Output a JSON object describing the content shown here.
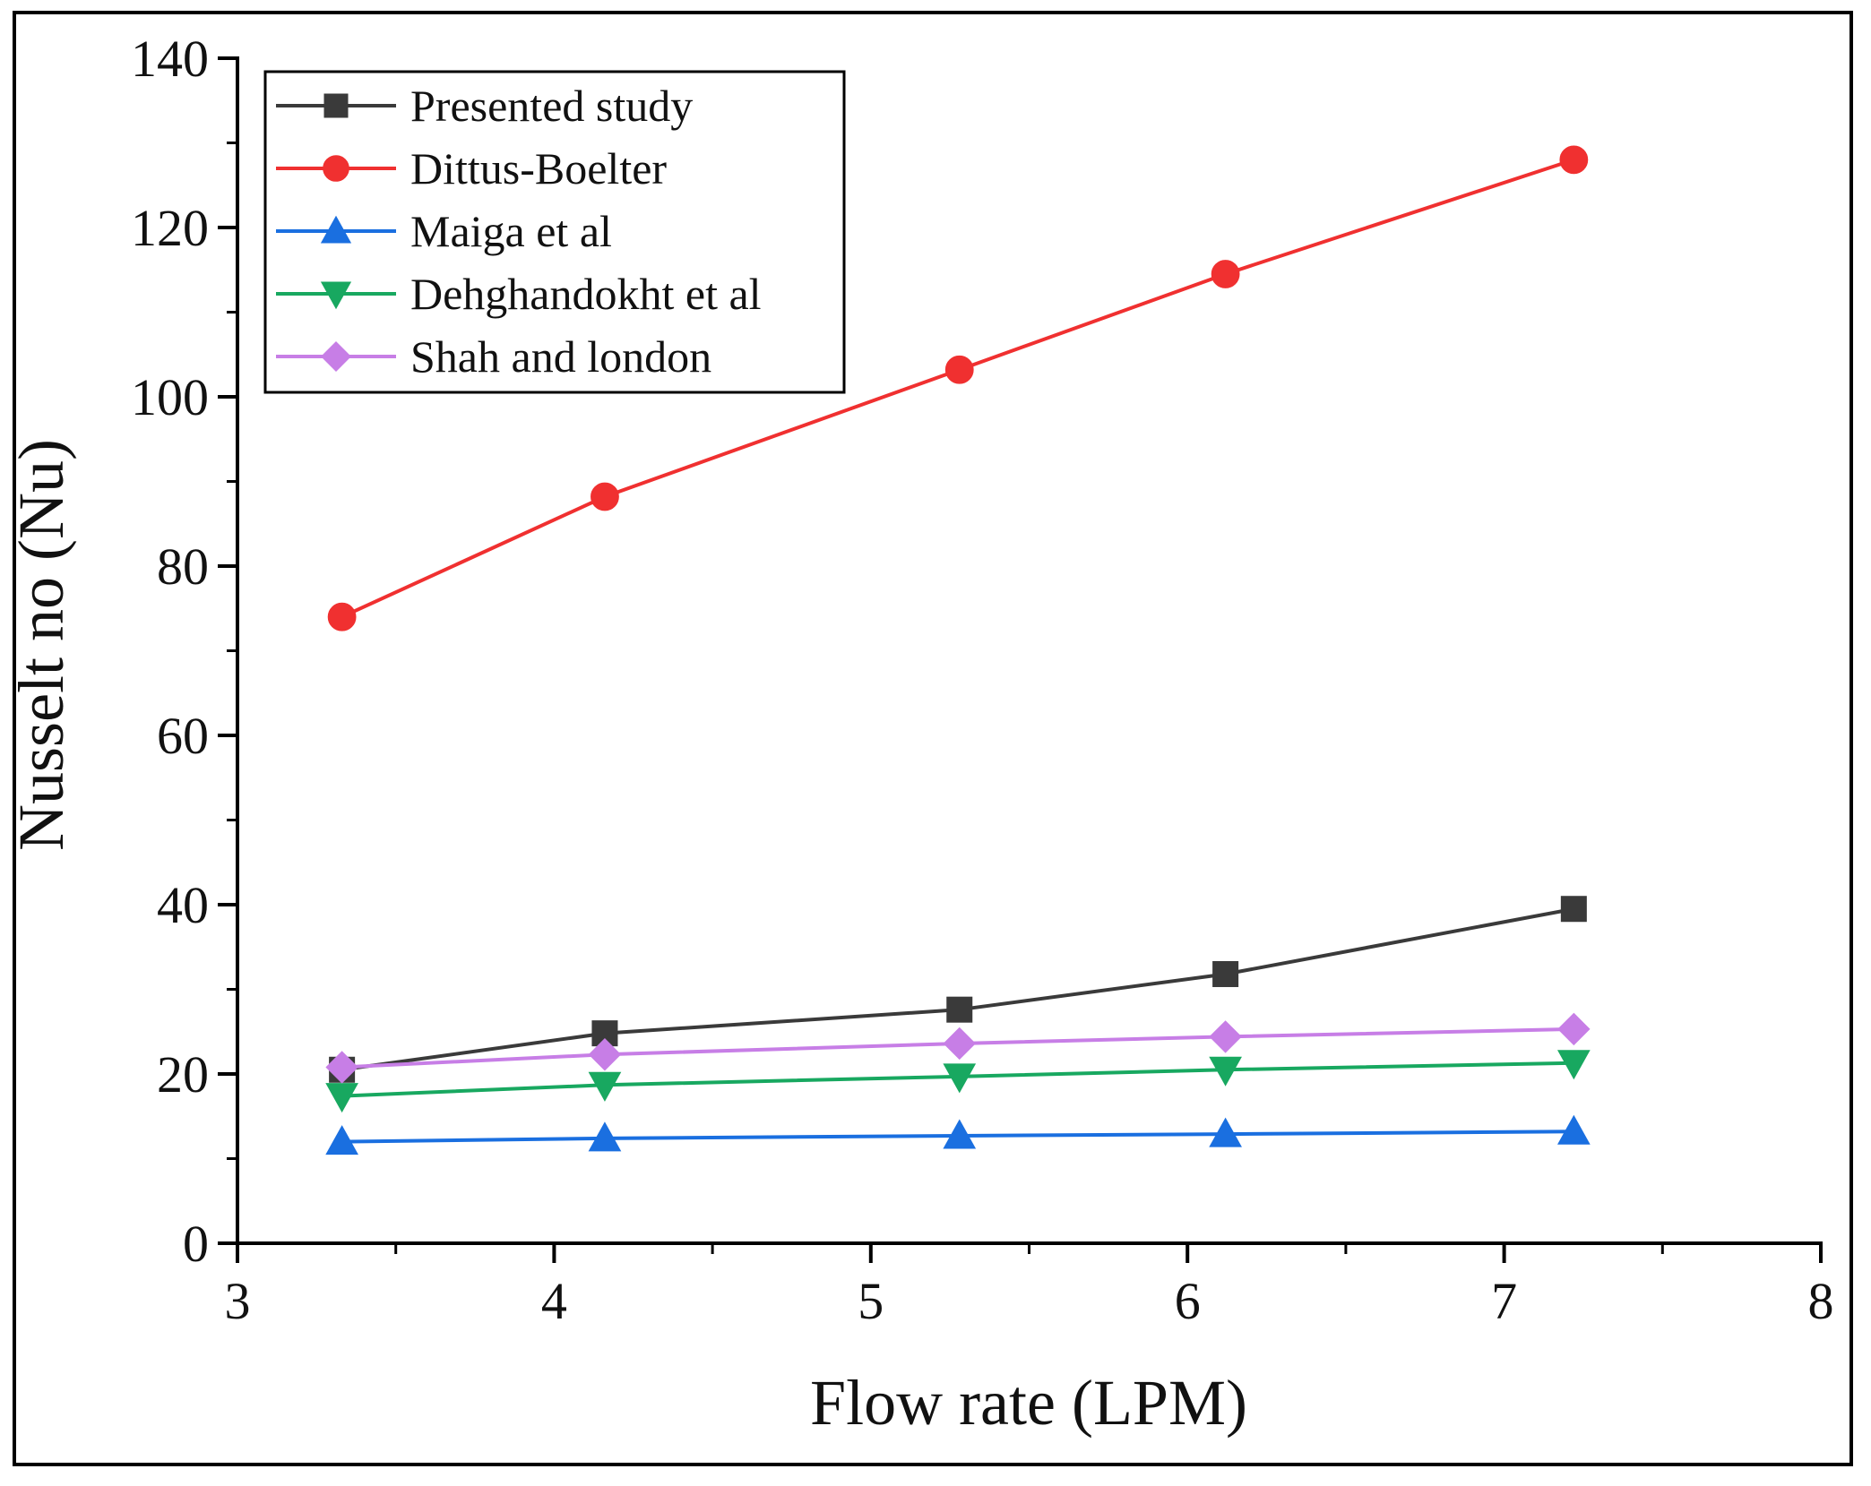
{
  "chart_data": {
    "type": "line",
    "title": "",
    "xlabel": "Flow rate (LPM)",
    "ylabel": "Nusselt no (Nu)",
    "xlim": [
      3,
      8
    ],
    "ylim": [
      0,
      140
    ],
    "xticks": [
      3,
      4,
      5,
      6,
      7,
      8
    ],
    "yticks": [
      0,
      20,
      40,
      60,
      80,
      100,
      120,
      140
    ],
    "grid": false,
    "legend_position": "top-left",
    "x": [
      3.33,
      4.16,
      5.28,
      6.12,
      7.22
    ],
    "series": [
      {
        "name": "Presented study",
        "color": "#3a3a3a",
        "marker": "square",
        "values": [
          20.5,
          24.8,
          27.6,
          31.8,
          39.5
        ]
      },
      {
        "name": "Dittus-Boelter",
        "color": "#f03030",
        "marker": "circle",
        "values": [
          74.0,
          88.2,
          103.2,
          114.5,
          128.0
        ]
      },
      {
        "name": "Maiga et al",
        "color": "#1a6fe0",
        "marker": "triangle-up",
        "values": [
          12.0,
          12.4,
          12.7,
          12.9,
          13.2
        ]
      },
      {
        "name": "Dehghandokht et al",
        "color": "#18a860",
        "marker": "triangle-down",
        "values": [
          17.4,
          18.7,
          19.7,
          20.5,
          21.3
        ]
      },
      {
        "name": "Shah and london",
        "color": "#c77ee6",
        "marker": "diamond",
        "values": [
          20.8,
          22.3,
          23.6,
          24.4,
          25.3
        ]
      }
    ]
  }
}
